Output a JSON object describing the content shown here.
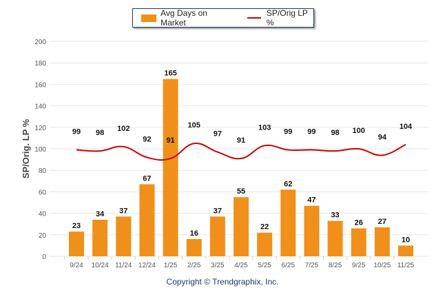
{
  "chart_data": {
    "type": "bar",
    "categories": [
      "9/24",
      "10/24",
      "11/24",
      "12/24",
      "1/25",
      "2/25",
      "3/25",
      "4/25",
      "5/25",
      "6/25",
      "7/25",
      "8/25",
      "9/25",
      "10/25",
      "11/25"
    ],
    "series": [
      {
        "name": "Avg Days on Market",
        "type": "bar",
        "color": "#F0901A",
        "values": [
          23,
          34,
          37,
          67,
          165,
          16,
          37,
          55,
          22,
          62,
          47,
          33,
          26,
          27,
          10
        ]
      },
      {
        "name": "SP/Orig LP %",
        "type": "line",
        "color": "#CC0000",
        "values": [
          99,
          98,
          102,
          92,
          91,
          105,
          97,
          91,
          103,
          99,
          99,
          98,
          100,
          94,
          104
        ]
      }
    ],
    "ylabel": "SP/Orig. LP %",
    "ylim": [
      0,
      200
    ],
    "yticks": [
      0,
      20,
      40,
      60,
      80,
      100,
      120,
      140,
      160,
      180,
      200
    ],
    "grid": true,
    "legend": "top-center"
  },
  "legend": {
    "bar_label": "Avg Days on Market",
    "line_label": "SP/Orig LP %"
  },
  "footer": {
    "copyright": "Copyright © Trendgraphix, Inc."
  }
}
